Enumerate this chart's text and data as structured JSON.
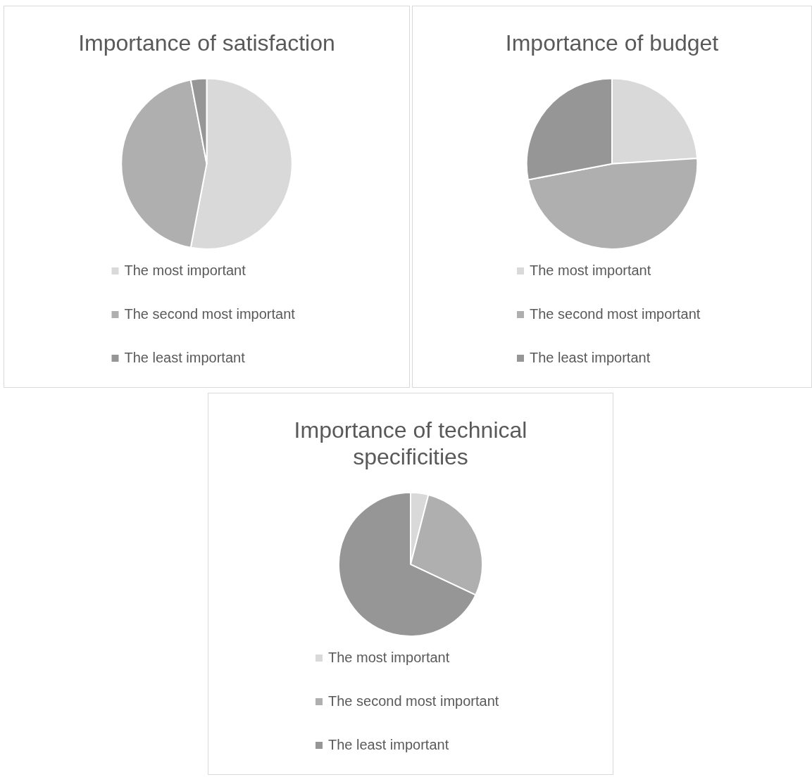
{
  "chart_data": [
    {
      "type": "pie",
      "title": "Importance of satisfaction",
      "categories": [
        "The most important",
        "The second most important",
        "The least important"
      ],
      "values": [
        53,
        44,
        3
      ],
      "colors": [
        "#d9d9d9",
        "#afafaf",
        "#969696"
      ],
      "legend": "bottom"
    },
    {
      "type": "pie",
      "title": "Importance of budget",
      "categories": [
        "The most important",
        "The second most important",
        "The least important"
      ],
      "values": [
        24,
        48,
        28
      ],
      "colors": [
        "#d9d9d9",
        "#afafaf",
        "#969696"
      ],
      "legend": "bottom"
    },
    {
      "type": "pie",
      "title": "Importance of technical specificities",
      "categories": [
        "The most important",
        "The second most important",
        "The least important"
      ],
      "values": [
        4,
        28,
        68
      ],
      "colors": [
        "#d9d9d9",
        "#afafaf",
        "#969696"
      ],
      "legend": "bottom"
    }
  ]
}
